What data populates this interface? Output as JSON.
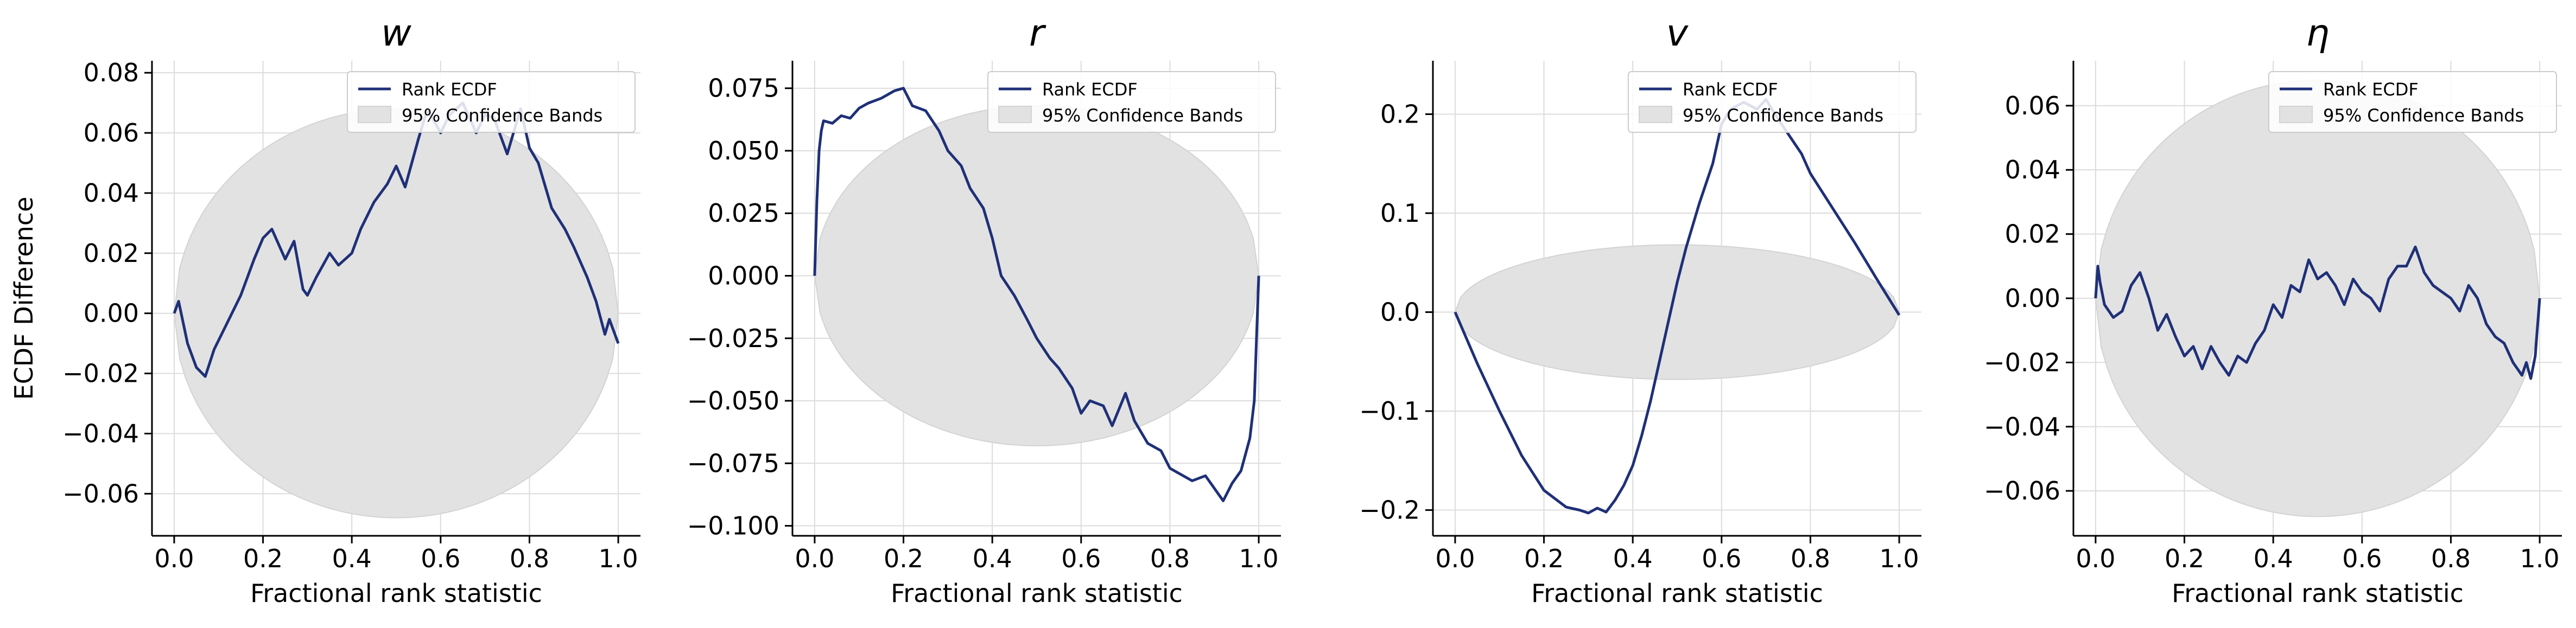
{
  "figure": {
    "ylabel_shared": "ECDF Difference"
  },
  "colors": {
    "line": "#1f3078",
    "band": "#e2e2e2",
    "band_edge": "#d3d3d3",
    "grid": "#dcdcdc",
    "axis": "#000000"
  },
  "legend": {
    "line_label": "Rank ECDF",
    "band_label": "95% Confidence Bands",
    "placement": "upper right"
  },
  "chart_data": [
    {
      "type": "line",
      "title": "w",
      "xlabel": "Fractional rank statistic",
      "ylabel": "ECDF Difference",
      "xlim": [
        -0.05,
        1.05
      ],
      "ylim": [
        -0.074,
        0.084
      ],
      "xticks": [
        "0.0",
        "0.2",
        "0.4",
        "0.6",
        "0.8",
        "1.0"
      ],
      "xtick_values": [
        0,
        0.2,
        0.4,
        0.6,
        0.8,
        1.0
      ],
      "yticks": [
        "−0.06",
        "−0.04",
        "−0.02",
        "0.00",
        "0.02",
        "0.04",
        "0.06",
        "0.08"
      ],
      "ytick_values": [
        -0.06,
        -0.04,
        -0.02,
        0,
        0.02,
        0.04,
        0.06,
        0.08
      ],
      "band_half_width": 0.068,
      "grid": true,
      "series": [
        {
          "name": "Rank ECDF",
          "x": [
            0,
            0.01,
            0.03,
            0.05,
            0.07,
            0.09,
            0.12,
            0.15,
            0.18,
            0.2,
            0.22,
            0.25,
            0.27,
            0.29,
            0.3,
            0.32,
            0.35,
            0.37,
            0.4,
            0.42,
            0.45,
            0.48,
            0.5,
            0.52,
            0.55,
            0.57,
            0.6,
            0.62,
            0.65,
            0.68,
            0.7,
            0.72,
            0.75,
            0.78,
            0.8,
            0.82,
            0.85,
            0.88,
            0.9,
            0.93,
            0.95,
            0.97,
            0.98,
            1.0
          ],
          "y": [
            0,
            0.004,
            -0.01,
            -0.018,
            -0.021,
            -0.012,
            -0.003,
            0.006,
            0.018,
            0.025,
            0.028,
            0.018,
            0.024,
            0.008,
            0.006,
            0.012,
            0.02,
            0.016,
            0.02,
            0.028,
            0.037,
            0.043,
            0.049,
            0.042,
            0.058,
            0.068,
            0.06,
            0.066,
            0.07,
            0.06,
            0.066,
            0.065,
            0.053,
            0.068,
            0.055,
            0.05,
            0.035,
            0.028,
            0.022,
            0.012,
            0.004,
            -0.007,
            -0.002,
            -0.01
          ]
        }
      ]
    },
    {
      "type": "line",
      "title": "r",
      "xlabel": "Fractional rank statistic",
      "ylabel": "",
      "xlim": [
        -0.05,
        1.05
      ],
      "ylim": [
        -0.104,
        0.086
      ],
      "xticks": [
        "0.0",
        "0.2",
        "0.4",
        "0.6",
        "0.8",
        "1.0"
      ],
      "xtick_values": [
        0,
        0.2,
        0.4,
        0.6,
        0.8,
        1.0
      ],
      "yticks": [
        "−0.100",
        "−0.075",
        "−0.050",
        "−0.025",
        "0.000",
        "0.025",
        "0.050",
        "0.075"
      ],
      "ytick_values": [
        -0.1,
        -0.075,
        -0.05,
        -0.025,
        0,
        0.025,
        0.05,
        0.075
      ],
      "band_half_width": 0.068,
      "grid": true,
      "series": [
        {
          "name": "Rank ECDF",
          "x": [
            0,
            0.005,
            0.01,
            0.015,
            0.02,
            0.04,
            0.06,
            0.08,
            0.1,
            0.12,
            0.15,
            0.18,
            0.2,
            0.22,
            0.25,
            0.28,
            0.3,
            0.33,
            0.35,
            0.38,
            0.4,
            0.42,
            0.45,
            0.48,
            0.5,
            0.53,
            0.55,
            0.58,
            0.6,
            0.62,
            0.65,
            0.67,
            0.7,
            0.72,
            0.75,
            0.78,
            0.8,
            0.83,
            0.85,
            0.88,
            0.9,
            0.92,
            0.94,
            0.96,
            0.98,
            0.99,
            1.0
          ],
          "y": [
            0,
            0.03,
            0.05,
            0.058,
            0.062,
            0.061,
            0.064,
            0.063,
            0.067,
            0.069,
            0.071,
            0.074,
            0.075,
            0.068,
            0.066,
            0.058,
            0.05,
            0.044,
            0.035,
            0.027,
            0.015,
            0.0,
            -0.008,
            -0.018,
            -0.025,
            -0.033,
            -0.037,
            -0.045,
            -0.055,
            -0.05,
            -0.052,
            -0.06,
            -0.047,
            -0.058,
            -0.067,
            -0.07,
            -0.077,
            -0.08,
            -0.082,
            -0.08,
            -0.085,
            -0.09,
            -0.083,
            -0.078,
            -0.065,
            -0.05,
            0.0
          ]
        }
      ]
    },
    {
      "type": "line",
      "title": "v",
      "xlabel": "Fractional rank statistic",
      "ylabel": "",
      "xlim": [
        -0.05,
        1.05
      ],
      "ylim": [
        -0.226,
        0.254
      ],
      "xticks": [
        "0.0",
        "0.2",
        "0.4",
        "0.6",
        "0.8",
        "1.0"
      ],
      "xtick_values": [
        0,
        0.2,
        0.4,
        0.6,
        0.8,
        1.0
      ],
      "yticks": [
        "−0.2",
        "−0.1",
        "0.0",
        "0.1",
        "0.2"
      ],
      "ytick_values": [
        -0.2,
        -0.1,
        0,
        0.1,
        0.2
      ],
      "band_half_width": 0.068,
      "grid": true,
      "series": [
        {
          "name": "Rank ECDF",
          "x": [
            0,
            0.05,
            0.1,
            0.15,
            0.2,
            0.25,
            0.28,
            0.3,
            0.32,
            0.34,
            0.36,
            0.38,
            0.4,
            0.42,
            0.44,
            0.46,
            0.48,
            0.5,
            0.52,
            0.55,
            0.58,
            0.6,
            0.62,
            0.65,
            0.68,
            0.7,
            0.72,
            0.75,
            0.78,
            0.8,
            0.85,
            0.9,
            0.95,
            1.0
          ],
          "y": [
            0,
            -0.052,
            -0.1,
            -0.145,
            -0.18,
            -0.197,
            -0.2,
            -0.203,
            -0.198,
            -0.202,
            -0.19,
            -0.175,
            -0.155,
            -0.125,
            -0.09,
            -0.05,
            -0.01,
            0.03,
            0.065,
            0.11,
            0.15,
            0.19,
            0.205,
            0.212,
            0.205,
            0.215,
            0.2,
            0.18,
            0.16,
            0.14,
            0.105,
            0.07,
            0.033,
            -0.003
          ]
        }
      ]
    },
    {
      "type": "line",
      "title": "η",
      "xlabel": "Fractional rank statistic",
      "ylabel": "",
      "xlim": [
        -0.05,
        1.05
      ],
      "ylim": [
        -0.074,
        0.074
      ],
      "xticks": [
        "0.0",
        "0.2",
        "0.4",
        "0.6",
        "0.8",
        "1.0"
      ],
      "xtick_values": [
        0,
        0.2,
        0.4,
        0.6,
        0.8,
        1.0
      ],
      "yticks": [
        "−0.06",
        "−0.04",
        "−0.02",
        "0.00",
        "0.02",
        "0.04",
        "0.06"
      ],
      "ytick_values": [
        -0.06,
        -0.04,
        -0.02,
        0,
        0.02,
        0.04,
        0.06
      ],
      "band_half_width": 0.068,
      "grid": true,
      "series": [
        {
          "name": "Rank ECDF",
          "x": [
            0,
            0.005,
            0.01,
            0.02,
            0.04,
            0.06,
            0.08,
            0.1,
            0.12,
            0.14,
            0.16,
            0.18,
            0.2,
            0.22,
            0.24,
            0.26,
            0.28,
            0.3,
            0.32,
            0.34,
            0.36,
            0.38,
            0.4,
            0.42,
            0.44,
            0.46,
            0.48,
            0.5,
            0.52,
            0.54,
            0.56,
            0.58,
            0.6,
            0.62,
            0.64,
            0.66,
            0.68,
            0.7,
            0.72,
            0.74,
            0.76,
            0.78,
            0.8,
            0.82,
            0.84,
            0.86,
            0.88,
            0.9,
            0.92,
            0.94,
            0.95,
            0.96,
            0.97,
            0.98,
            0.99,
            1.0
          ],
          "y": [
            0,
            0.01,
            0.005,
            -0.002,
            -0.006,
            -0.004,
            0.004,
            0.008,
            0.0,
            -0.01,
            -0.005,
            -0.012,
            -0.018,
            -0.015,
            -0.022,
            -0.015,
            -0.02,
            -0.024,
            -0.018,
            -0.02,
            -0.014,
            -0.01,
            -0.002,
            -0.006,
            0.004,
            0.002,
            0.012,
            0.006,
            0.008,
            0.004,
            -0.002,
            0.006,
            0.002,
            0.0,
            -0.004,
            0.006,
            0.01,
            0.01,
            0.016,
            0.008,
            0.004,
            0.002,
            0.0,
            -0.004,
            0.004,
            0.0,
            -0.008,
            -0.012,
            -0.014,
            -0.02,
            -0.022,
            -0.024,
            -0.02,
            -0.025,
            -0.018,
            0.0
          ]
        }
      ]
    }
  ]
}
